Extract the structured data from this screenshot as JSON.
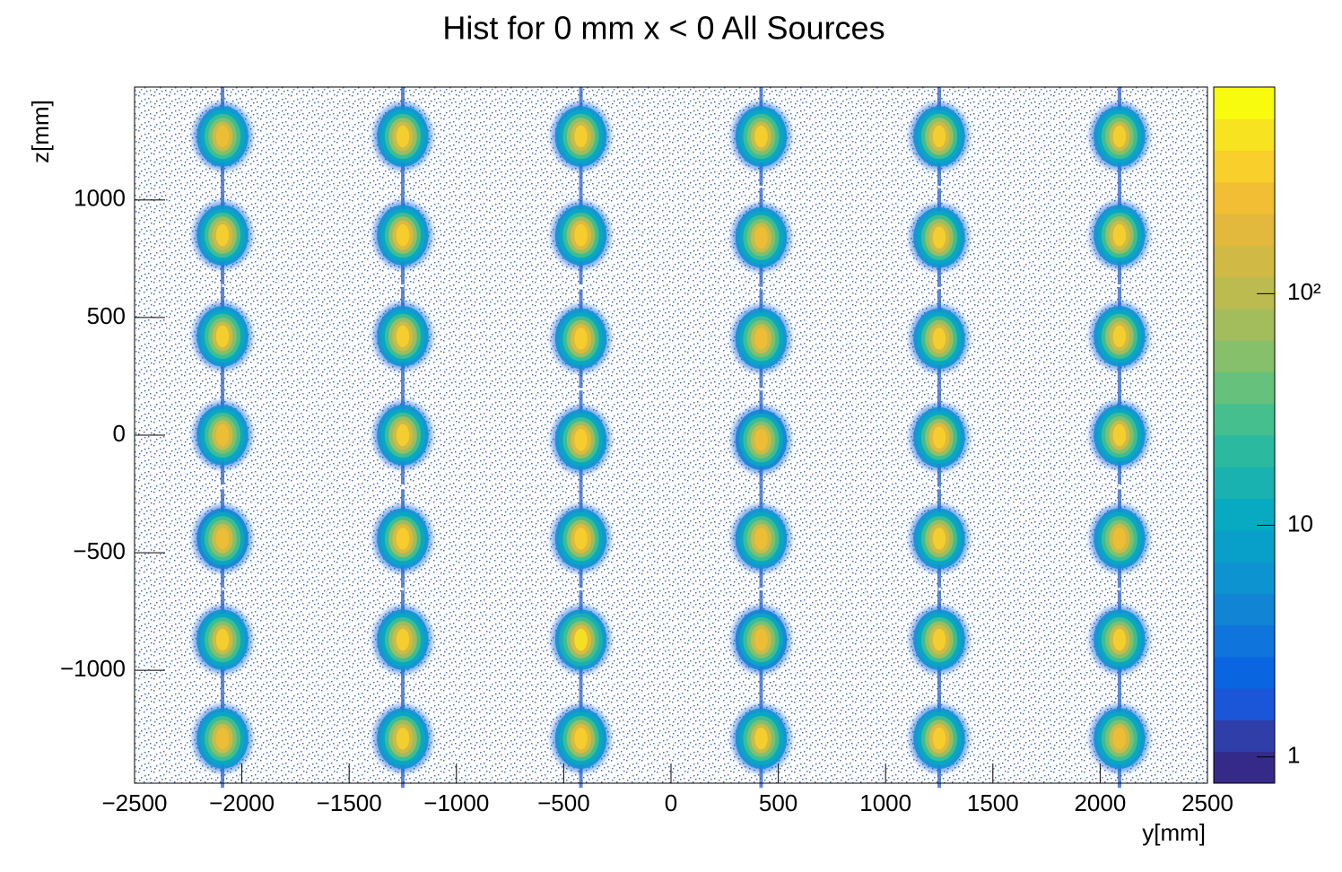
{
  "chart_data": {
    "type": "hist2d",
    "title": "Hist for 0 mm x < 0 All Sources",
    "xlabel": "y[mm]",
    "ylabel": "z[mm]",
    "xlim": [
      -2500,
      2500
    ],
    "ylim": [
      -1480,
      1480
    ],
    "xticks": [
      {
        "value": -2500,
        "label": "−2500"
      },
      {
        "value": -2000,
        "label": "−2000"
      },
      {
        "value": -1500,
        "label": "−1500"
      },
      {
        "value": -1000,
        "label": "−1000"
      },
      {
        "value": -500,
        "label": "−500"
      },
      0,
      500,
      1000,
      1500,
      2000,
      2500
    ],
    "yticks": [
      {
        "value": -1000,
        "label": "−1000"
      },
      {
        "value": -500,
        "label": "−500"
      },
      0,
      500,
      1000
    ],
    "zlim": [
      0.77,
      780
    ],
    "zticks": [
      1,
      10,
      {
        "value": 100,
        "label": "10²"
      }
    ],
    "zlog": true,
    "colormap": [
      "#352a87",
      "#2f3ea8",
      "#1b55d8",
      "#0a65e0",
      "#0f74dc",
      "#1284d4",
      "#0d93d0",
      "#08a0c8",
      "#07aac0",
      "#19b2b0",
      "#2bb9a0",
      "#45bf8e",
      "#65c17b",
      "#86c06a",
      "#a3bd5c",
      "#bbbb50",
      "#d0ba45",
      "#e2b93c",
      "#f1be34",
      "#f8cf2b",
      "#f7e31f",
      "#f9fb0e"
    ],
    "points": {
      "x": [
        -2090,
        -2090,
        -2090,
        -2090,
        -2090,
        -2090,
        -2090,
        -1250,
        -1250,
        -1250,
        -1250,
        -1250,
        -1250,
        -1250,
        -420,
        -420,
        -420,
        -420,
        -420,
        -420,
        -420,
        420,
        420,
        420,
        420,
        420,
        420,
        420,
        1250,
        1250,
        1250,
        1250,
        1250,
        1250,
        1250,
        2090,
        2090,
        2090,
        2090,
        2090,
        2090,
        2090
      ],
      "y": [
        -1290,
        -870,
        -440,
        0,
        420,
        850,
        1270,
        -1290,
        -870,
        -440,
        0,
        420,
        850,
        1270,
        -1290,
        -870,
        -440,
        -20,
        410,
        850,
        1270,
        -1290,
        -870,
        -440,
        -20,
        410,
        840,
        1270,
        -1290,
        -870,
        -440,
        -10,
        410,
        840,
        1270,
        -1290,
        -870,
        -440,
        0,
        420,
        850,
        1270
      ],
      "values": [
        300,
        320,
        280,
        300,
        320,
        340,
        300,
        340,
        360,
        380,
        340,
        360,
        380,
        340,
        380,
        420,
        380,
        400,
        380,
        400,
        360,
        320,
        280,
        300,
        280,
        300,
        300,
        320,
        380,
        360,
        360,
        400,
        360,
        340,
        360,
        300,
        320,
        300,
        320,
        340,
        360,
        320
      ]
    }
  }
}
